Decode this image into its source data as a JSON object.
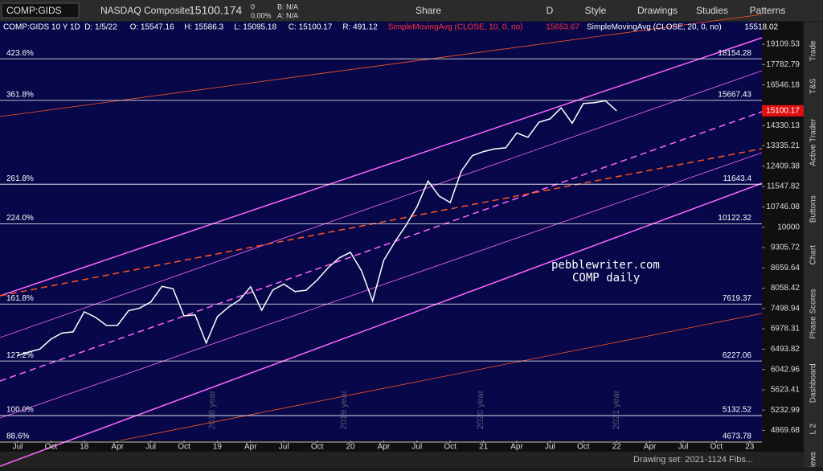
{
  "toolbar": {
    "symbol": "COMP:GIDS",
    "name": "NASDAQ Composite",
    "last": "15100.174",
    "change": "0",
    "change_pct": "0.00%",
    "bid": "B: N/A",
    "ask": "A: N/A",
    "buttons": [
      "Share",
      "D",
      "Style",
      "Drawings",
      "Studies",
      "Patterns"
    ]
  },
  "header": [
    "COMP:GIDS 10 Y 1D",
    "D: 1/5/22",
    "O: 15547.16",
    "H: 15586.3",
    "L: 15095.18",
    "C: 15100.17",
    "R: 491.12",
    "SimpleMovingAvg (CLOSE, 10, 0, no)",
    "15653.67",
    "SimpleMovingAvg (CLOSE, 20, 0, no)",
    "15518.02"
  ],
  "side_tabs": [
    "Trade",
    "T&S",
    "Active Trader",
    "Buttons",
    "Chart",
    "Phase Scores",
    "Dashboard",
    "L 2",
    "News"
  ],
  "status_bar": "Drawing set: 2021-1124 Fibs...",
  "annotation": [
    "pebblewriter.com",
    "COMP daily"
  ],
  "watermarks": [
    "2018 year",
    "2019 year",
    "2020 year",
    "2021 year"
  ],
  "chart_data": {
    "type": "line",
    "log_scale": true,
    "ylim": [
      4700,
      20700
    ],
    "yticks": [
      19109.53,
      17782.79,
      16546.18,
      14330.13,
      13335.21,
      12409.38,
      11547.82,
      10746.08,
      10000,
      9305.72,
      8659.64,
      8058.42,
      7498.94,
      6978.31,
      6493.82,
      6042.96,
      5623.41,
      5232.99,
      4869.68
    ],
    "categories": [
      "Jul",
      null,
      null,
      "Oct",
      null,
      null,
      "18",
      null,
      null,
      "Apr",
      null,
      null,
      "Jul",
      null,
      null,
      "Oct",
      null,
      null,
      "19",
      null,
      null,
      "Apr",
      null,
      null,
      "Jul",
      null,
      null,
      "Oct",
      null,
      null,
      "20",
      null,
      null,
      "Apr",
      null,
      null,
      "Jul",
      null,
      null,
      "Oct",
      null,
      null,
      "21",
      null,
      null,
      "Apr",
      null,
      null,
      "Jul",
      null,
      null,
      "Oct",
      null,
      null,
      "22",
      null,
      null,
      "Apr",
      null,
      null,
      "Jul",
      null,
      null,
      "Oct",
      null,
      null,
      "23"
    ],
    "series": [
      {
        "color": "#ffffff",
        "values": [
          6348,
          6428,
          6496,
          6728,
          6873,
          6903,
          7411,
          7273,
          7063,
          7066,
          7442,
          7510,
          7672,
          8110,
          8046,
          7306,
          7331,
          6635,
          7282,
          7533,
          7729,
          8095,
          7453,
          8006,
          8175,
          7963,
          7999,
          8292,
          8665,
          8973,
          9151,
          8567,
          7700,
          8890,
          9490,
          10059,
          10745,
          11775,
          11168,
          10912,
          12199,
          12888,
          13070,
          13192,
          13247,
          13962,
          13749,
          14504,
          14673,
          15259,
          14449,
          15498,
          15538,
          15645,
          15100,
          null,
          null,
          null,
          null,
          null,
          null,
          null,
          null,
          null,
          null,
          null,
          null
        ]
      }
    ],
    "last_price": 15100.17,
    "fib_levels": [
      {
        "label": "423.6%",
        "value": 18154.28
      },
      {
        "label": "361.8%",
        "value": 15667.43
      },
      {
        "label": "261.8%",
        "value": 11643.4
      },
      {
        "label": "224.0%",
        "value": 10122.32
      },
      {
        "label": "161.8%",
        "value": 7619.37
      },
      {
        "label": "127.2%",
        "value": 6227.06
      },
      {
        "label": "100.0%",
        "value": 5132.52
      },
      {
        "label": "88.6%",
        "value": 4673.78
      }
    ]
  }
}
